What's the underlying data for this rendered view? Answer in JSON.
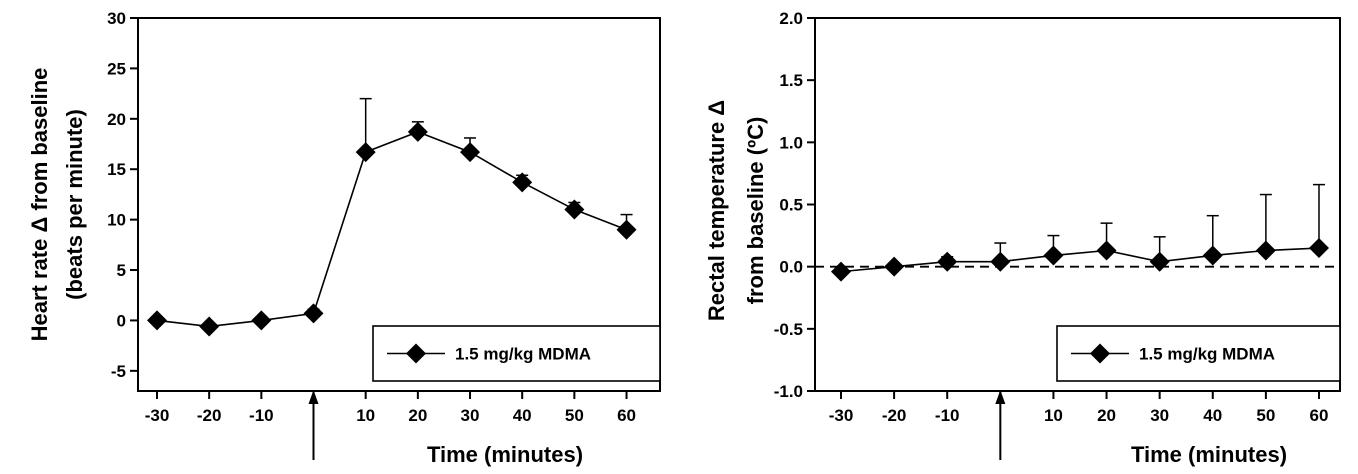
{
  "chart_data": [
    {
      "type": "line",
      "xlabel": "Time (minutes)",
      "ylabel_lines": [
        "Heart rate Δ from baseline",
        "(beats per minute)"
      ],
      "x_tick_labels": [
        "-30",
        "-20",
        "-10",
        "",
        "10",
        "20",
        "30",
        "40",
        "50",
        "60"
      ],
      "y_ticks": [
        "30",
        "25",
        "20",
        "15",
        "10",
        "5",
        "0",
        "-5"
      ],
      "ylim": [
        -7,
        30
      ],
      "grid": false,
      "legend_position": "bottom-right",
      "dashed_zero_line": false,
      "dose_arrow_at": 0,
      "series": [
        {
          "name": "1.5 mg/kg MDMA",
          "marker": "diamond",
          "x": [
            -30,
            -20,
            -10,
            0,
            10,
            20,
            30,
            40,
            50,
            60
          ],
          "y": [
            0.0,
            -0.6,
            0.0,
            0.7,
            16.7,
            18.7,
            16.7,
            13.7,
            11.0,
            9.0
          ],
          "error_upper": [
            0.3,
            0.3,
            0.3,
            0.4,
            5.3,
            1.0,
            1.4,
            0.7,
            0.7,
            1.5
          ]
        }
      ]
    },
    {
      "type": "line",
      "xlabel": "Time (minutes)",
      "ylabel_lines": [
        "Rectal temperature Δ",
        "from baseline (ºC)"
      ],
      "x_tick_labels": [
        "-30",
        "-20",
        "-10",
        "",
        "10",
        "20",
        "30",
        "40",
        "50",
        "60"
      ],
      "y_ticks": [
        "2.0",
        "1.5",
        "1.0",
        "0.5",
        "0.0",
        "-0.5",
        "-1.0"
      ],
      "ylim": [
        -1.0,
        2.0
      ],
      "grid": false,
      "legend_position": "bottom-right",
      "dashed_zero_line": true,
      "dose_arrow_at": 0,
      "series": [
        {
          "name": "1.5 mg/kg MDMA",
          "marker": "diamond",
          "x": [
            -30,
            -20,
            -10,
            0,
            10,
            20,
            30,
            40,
            50,
            60
          ],
          "y": [
            -0.04,
            0.0,
            0.04,
            0.04,
            0.09,
            0.13,
            0.04,
            0.09,
            0.13,
            0.15
          ],
          "error_upper": [
            0.02,
            0.02,
            0.04,
            0.15,
            0.16,
            0.22,
            0.2,
            0.32,
            0.45,
            0.51
          ]
        }
      ]
    }
  ]
}
